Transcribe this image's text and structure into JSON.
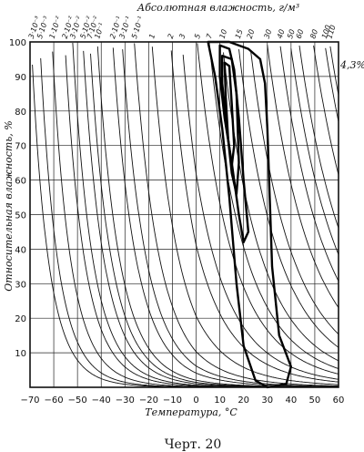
{
  "chart_data": {
    "type": "line",
    "xlabel": "Температура, °C",
    "ylabel": "Относительная влажность, %",
    "top_label": "Абсолютная влажность, г/м³",
    "caption": "Черт. 20",
    "annotation": "4,3%",
    "xlim": [
      -70,
      60
    ],
    "ylim": [
      0,
      100
    ],
    "x_ticks": [
      -70,
      -60,
      -50,
      -40,
      -30,
      -20,
      -10,
      0,
      10,
      20,
      30,
      40,
      50,
      60
    ],
    "y_ticks": [
      10,
      20,
      30,
      40,
      50,
      60,
      70,
      80,
      90,
      100
    ],
    "grid": true,
    "absolute_humidity_lines": [
      {
        "label": "3·10⁻³",
        "value": 0.003
      },
      {
        "label": "5·10⁻³",
        "value": 0.005
      },
      {
        "label": "1·10⁻²",
        "value": 0.01
      },
      {
        "label": "2·10⁻²",
        "value": 0.02
      },
      {
        "label": "3·10⁻²",
        "value": 0.03
      },
      {
        "label": "5·10⁻²",
        "value": 0.05
      },
      {
        "label": "7·10⁻²",
        "value": 0.07
      },
      {
        "label": "10⁻¹",
        "value": 0.1
      },
      {
        "label": "2·10⁻¹",
        "value": 0.2
      },
      {
        "label": "3·10⁻¹",
        "value": 0.3
      },
      {
        "label": "5·10⁻¹",
        "value": 0.5
      },
      {
        "label": "1",
        "value": 1
      },
      {
        "label": "2",
        "value": 2
      },
      {
        "label": "3",
        "value": 3
      },
      {
        "label": "5",
        "value": 5
      },
      {
        "label": "7",
        "value": 7
      },
      {
        "label": "10",
        "value": 10
      },
      {
        "label": "15",
        "value": 15
      },
      {
        "label": "20",
        "value": 20
      },
      {
        "label": "30",
        "value": 30
      },
      {
        "label": "40",
        "value": 40
      },
      {
        "label": "50",
        "value": 50
      },
      {
        "label": "60",
        "value": 60
      },
      {
        "label": "80",
        "value": 80
      },
      {
        "label": "100",
        "value": 100
      },
      {
        "label": "110",
        "value": 110
      }
    ],
    "contours": [
      {
        "points": [
          [
            5,
            100
          ],
          [
            14,
            100
          ],
          [
            22,
            98
          ],
          [
            27,
            95
          ],
          [
            29,
            88
          ],
          [
            30,
            75
          ],
          [
            31,
            55
          ],
          [
            32,
            35
          ],
          [
            35,
            15
          ],
          [
            40,
            6
          ],
          [
            38,
            1
          ],
          [
            30,
            0
          ],
          [
            25,
            2
          ],
          [
            20,
            12
          ],
          [
            17,
            30
          ],
          [
            14,
            55
          ],
          [
            11,
            75
          ],
          [
            8,
            90
          ],
          [
            5,
            100
          ]
        ]
      },
      {
        "points": [
          [
            10,
            99
          ],
          [
            14,
            98
          ],
          [
            16,
            92
          ],
          [
            18,
            78
          ],
          [
            20,
            60
          ],
          [
            22,
            45
          ],
          [
            20,
            42
          ],
          [
            18,
            50
          ],
          [
            15,
            65
          ],
          [
            12,
            78
          ],
          [
            10,
            90
          ],
          [
            10,
            99
          ]
        ]
      },
      {
        "points": [
          [
            11,
            96
          ],
          [
            15,
            95
          ],
          [
            17,
            85
          ],
          [
            18,
            65
          ],
          [
            17,
            56
          ],
          [
            15,
            62
          ],
          [
            13,
            75
          ],
          [
            11,
            88
          ],
          [
            11,
            96
          ]
        ]
      },
      {
        "points": [
          [
            12,
            94
          ],
          [
            14,
            93
          ],
          [
            15,
            82
          ],
          [
            16,
            70
          ],
          [
            15,
            64
          ],
          [
            13.5,
            72
          ],
          [
            12.5,
            84
          ],
          [
            12,
            94
          ]
        ]
      }
    ]
  }
}
